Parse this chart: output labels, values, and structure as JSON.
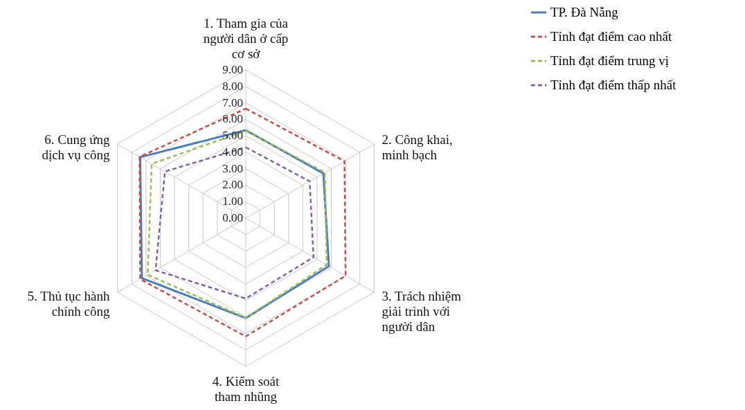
{
  "chart_data": {
    "type": "radar",
    "categories": [
      "1. Tham gia của người dân ở cấp cơ sở",
      "2. Công khai, minh bạch",
      "3. Trách nhiệm giải trình với người dân",
      "4. Kiểm soát tham nhũng",
      "5. Thủ tục hành chính công",
      "6. Cung ứng dịch vụ công"
    ],
    "series": [
      {
        "name": "TP. Đà Nẵng",
        "color": "#4a7ebb",
        "line_style": "solid",
        "values": [
          5.34,
          5.44,
          5.83,
          6.07,
          7.29,
          7.41
        ]
      },
      {
        "name": "Tỉnh đạt điểm cao nhất",
        "color": "#c0504d",
        "line_style": "dashed",
        "values": [
          6.65,
          6.92,
          7.0,
          7.18,
          7.41,
          7.45
        ]
      },
      {
        "name": "Tỉnh đạt điểm trung vị",
        "color": "#9bbb59",
        "line_style": "dashed",
        "values": [
          5.3,
          5.55,
          5.67,
          6.05,
          6.88,
          6.6
        ]
      },
      {
        "name": "Tỉnh đạt điểm thấp nhất",
        "color": "#8064a2",
        "line_style": "dashed",
        "values": [
          4.3,
          4.48,
          4.75,
          4.88,
          6.33,
          5.67
        ]
      }
    ],
    "ylim": [
      0,
      9
    ],
    "yticks": [
      {
        "value": 0,
        "label": "0.00"
      },
      {
        "value": 1,
        "label": "1.00"
      },
      {
        "value": 2,
        "label": "2.00"
      },
      {
        "value": 3,
        "label": "3.00"
      },
      {
        "value": 4,
        "label": "4.00"
      },
      {
        "value": 5,
        "label": "5.00"
      },
      {
        "value": 6,
        "label": "6.00"
      },
      {
        "value": 7,
        "label": "7.00"
      },
      {
        "value": 8,
        "label": "8.00"
      },
      {
        "value": 9,
        "label": "9.00"
      }
    ],
    "grid": true,
    "legend": "top right",
    "marker": "none"
  }
}
